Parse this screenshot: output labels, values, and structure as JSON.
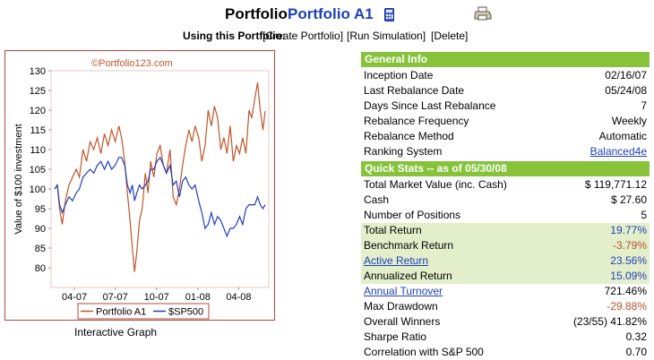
{
  "header": {
    "title_word": "Portfolio",
    "portfolio_name": "Portfolio A1",
    "using_label": "Using this Portfolio:",
    "actions": [
      "[Create Portfolio]",
      "[Run Simulation]",
      "[Delete]"
    ]
  },
  "graph": {
    "caption": "Interactive Graph",
    "watermark": "©Portfolio123.com"
  },
  "chart_data": {
    "type": "line",
    "ylabel": "Value of $100 investment",
    "xlabel": "",
    "ylim": [
      75,
      130
    ],
    "yticks": [
      80,
      85,
      90,
      95,
      100,
      105,
      110,
      115,
      120,
      125,
      130
    ],
    "xticks": [
      "04-07",
      "07-07",
      "10-07",
      "01-08",
      "04-08"
    ],
    "x_range": [
      "2007-02-16",
      "2008-05-30"
    ],
    "grid": false,
    "legend_position": "bottom",
    "series": [
      {
        "name": "Portfolio A1",
        "color": "#c0552a",
        "points": [
          [
            "2007-02-16",
            100
          ],
          [
            "2007-02-22",
            101
          ],
          [
            "2007-02-27",
            95
          ],
          [
            "2007-03-05",
            91
          ],
          [
            "2007-03-12",
            97
          ],
          [
            "2007-03-20",
            101
          ],
          [
            "2007-03-28",
            103
          ],
          [
            "2007-04-05",
            105
          ],
          [
            "2007-04-12",
            103
          ],
          [
            "2007-04-20",
            110
          ],
          [
            "2007-04-28",
            107
          ],
          [
            "2007-05-06",
            112
          ],
          [
            "2007-05-14",
            110
          ],
          [
            "2007-05-22",
            113
          ],
          [
            "2007-05-30",
            109
          ],
          [
            "2007-06-07",
            114
          ],
          [
            "2007-06-15",
            111
          ],
          [
            "2007-06-23",
            115
          ],
          [
            "2007-07-01",
            112
          ],
          [
            "2007-07-09",
            116
          ],
          [
            "2007-07-15",
            113
          ],
          [
            "2007-07-22",
            107
          ],
          [
            "2007-07-28",
            99
          ],
          [
            "2007-08-03",
            92
          ],
          [
            "2007-08-08",
            85
          ],
          [
            "2007-08-13",
            79
          ],
          [
            "2007-08-18",
            84
          ],
          [
            "2007-08-24",
            92
          ],
          [
            "2007-08-30",
            95
          ],
          [
            "2007-09-06",
            104
          ],
          [
            "2007-09-12",
            99
          ],
          [
            "2007-09-18",
            107
          ],
          [
            "2007-09-25",
            103
          ],
          [
            "2007-10-02",
            109
          ],
          [
            "2007-10-09",
            111
          ],
          [
            "2007-10-16",
            106
          ],
          [
            "2007-10-23",
            104
          ],
          [
            "2007-10-31",
            110
          ],
          [
            "2007-11-07",
            98
          ],
          [
            "2007-11-14",
            96
          ],
          [
            "2007-11-21",
            100
          ],
          [
            "2007-11-28",
            106
          ],
          [
            "2007-12-05",
            111
          ],
          [
            "2007-12-12",
            115
          ],
          [
            "2007-12-19",
            112
          ],
          [
            "2007-12-26",
            116
          ],
          [
            "2008-01-03",
            113
          ],
          [
            "2008-01-10",
            107
          ],
          [
            "2008-01-17",
            111
          ],
          [
            "2008-01-24",
            120
          ],
          [
            "2008-01-31",
            116
          ],
          [
            "2008-02-07",
            121
          ],
          [
            "2008-02-14",
            118
          ],
          [
            "2008-02-21",
            110
          ],
          [
            "2008-02-28",
            113
          ],
          [
            "2008-03-06",
            109
          ],
          [
            "2008-03-13",
            116
          ],
          [
            "2008-03-20",
            107
          ],
          [
            "2008-03-27",
            111
          ],
          [
            "2008-04-03",
            109
          ],
          [
            "2008-04-10",
            113
          ],
          [
            "2008-04-17",
            109
          ],
          [
            "2008-04-24",
            120
          ],
          [
            "2008-04-30",
            118
          ],
          [
            "2008-05-07",
            123
          ],
          [
            "2008-05-13",
            127
          ],
          [
            "2008-05-19",
            120
          ],
          [
            "2008-05-25",
            115
          ],
          [
            "2008-05-30",
            119.77
          ]
        ]
      },
      {
        "name": "$SP500",
        "color": "#1f3fb7",
        "points": [
          [
            "2007-02-16",
            100
          ],
          [
            "2007-02-22",
            101
          ],
          [
            "2007-02-27",
            96
          ],
          [
            "2007-03-05",
            94
          ],
          [
            "2007-03-12",
            96
          ],
          [
            "2007-03-20",
            98
          ],
          [
            "2007-03-28",
            97
          ],
          [
            "2007-04-05",
            99
          ],
          [
            "2007-04-12",
            100
          ],
          [
            "2007-04-20",
            103
          ],
          [
            "2007-04-28",
            104
          ],
          [
            "2007-05-06",
            105
          ],
          [
            "2007-05-14",
            104
          ],
          [
            "2007-05-22",
            106
          ],
          [
            "2007-05-30",
            107
          ],
          [
            "2007-06-07",
            105
          ],
          [
            "2007-06-15",
            107
          ],
          [
            "2007-06-23",
            105
          ],
          [
            "2007-07-01",
            106
          ],
          [
            "2007-07-09",
            108
          ],
          [
            "2007-07-15",
            108
          ],
          [
            "2007-07-22",
            106
          ],
          [
            "2007-07-28",
            101
          ],
          [
            "2007-08-03",
            99
          ],
          [
            "2007-08-08",
            101
          ],
          [
            "2007-08-13",
            97
          ],
          [
            "2007-08-18",
            99
          ],
          [
            "2007-08-24",
            101
          ],
          [
            "2007-08-30",
            100
          ],
          [
            "2007-09-06",
            101
          ],
          [
            "2007-09-12",
            102
          ],
          [
            "2007-09-18",
            105
          ],
          [
            "2007-09-25",
            105
          ],
          [
            "2007-10-02",
            107
          ],
          [
            "2007-10-09",
            108
          ],
          [
            "2007-10-16",
            106
          ],
          [
            "2007-10-23",
            104
          ],
          [
            "2007-10-31",
            106
          ],
          [
            "2007-11-07",
            101
          ],
          [
            "2007-11-14",
            102
          ],
          [
            "2007-11-21",
            98
          ],
          [
            "2007-11-28",
            102
          ],
          [
            "2007-12-05",
            103
          ],
          [
            "2007-12-12",
            101
          ],
          [
            "2007-12-19",
            100
          ],
          [
            "2007-12-26",
            101
          ],
          [
            "2008-01-03",
            97
          ],
          [
            "2008-01-10",
            94
          ],
          [
            "2008-01-17",
            90
          ],
          [
            "2008-01-24",
            91
          ],
          [
            "2008-01-31",
            94
          ],
          [
            "2008-02-07",
            91
          ],
          [
            "2008-02-14",
            93
          ],
          [
            "2008-02-21",
            92
          ],
          [
            "2008-02-28",
            90
          ],
          [
            "2008-03-06",
            88
          ],
          [
            "2008-03-13",
            90
          ],
          [
            "2008-03-20",
            90
          ],
          [
            "2008-03-27",
            91
          ],
          [
            "2008-04-03",
            93
          ],
          [
            "2008-04-10",
            91
          ],
          [
            "2008-04-17",
            95
          ],
          [
            "2008-04-24",
            96
          ],
          [
            "2008-04-30",
            96
          ],
          [
            "2008-05-07",
            96
          ],
          [
            "2008-05-13",
            98
          ],
          [
            "2008-05-19",
            96
          ],
          [
            "2008-05-25",
            95
          ],
          [
            "2008-05-30",
            96
          ]
        ]
      }
    ]
  },
  "general_info": {
    "header": "General Info",
    "rows": [
      {
        "label": "Inception Date",
        "value": "02/16/07"
      },
      {
        "label": "Last Rebalance Date",
        "value": "05/24/08"
      },
      {
        "label": "Days Since Last Rebalance",
        "value": "7"
      },
      {
        "label": "Rebalance Frequency",
        "value": "Weekly"
      },
      {
        "label": "Rebalance Method",
        "value": "Automatic"
      },
      {
        "label": "Ranking System",
        "value": "Balanced4e"
      }
    ]
  },
  "quick_stats": {
    "header": "Quick Stats -- as of 05/30/08",
    "rows": [
      {
        "label": "Total Market Value (inc. Cash)",
        "value": "$ 119,771.12"
      },
      {
        "label": "Cash",
        "value": "$ 27.60"
      },
      {
        "label": "Number of Positions",
        "value": "5"
      },
      {
        "label": "Total Return",
        "value": "19.77%"
      },
      {
        "label": "Benchmark Return",
        "value": "-3.79%"
      },
      {
        "label": "Active Return",
        "value": "23.56%"
      },
      {
        "label": "Annualized Return",
        "value": "15.09%"
      },
      {
        "label": "Annual Turnover",
        "value": "721.46%"
      },
      {
        "label": "Max Drawdown",
        "value": "-29.88%"
      },
      {
        "label": "Overall Winners",
        "value": "(23/55) 41.82%"
      },
      {
        "label": "Sharpe Ratio",
        "value": "0.32"
      },
      {
        "label": "Correlation with S&P 500",
        "value": "0.70"
      }
    ]
  }
}
